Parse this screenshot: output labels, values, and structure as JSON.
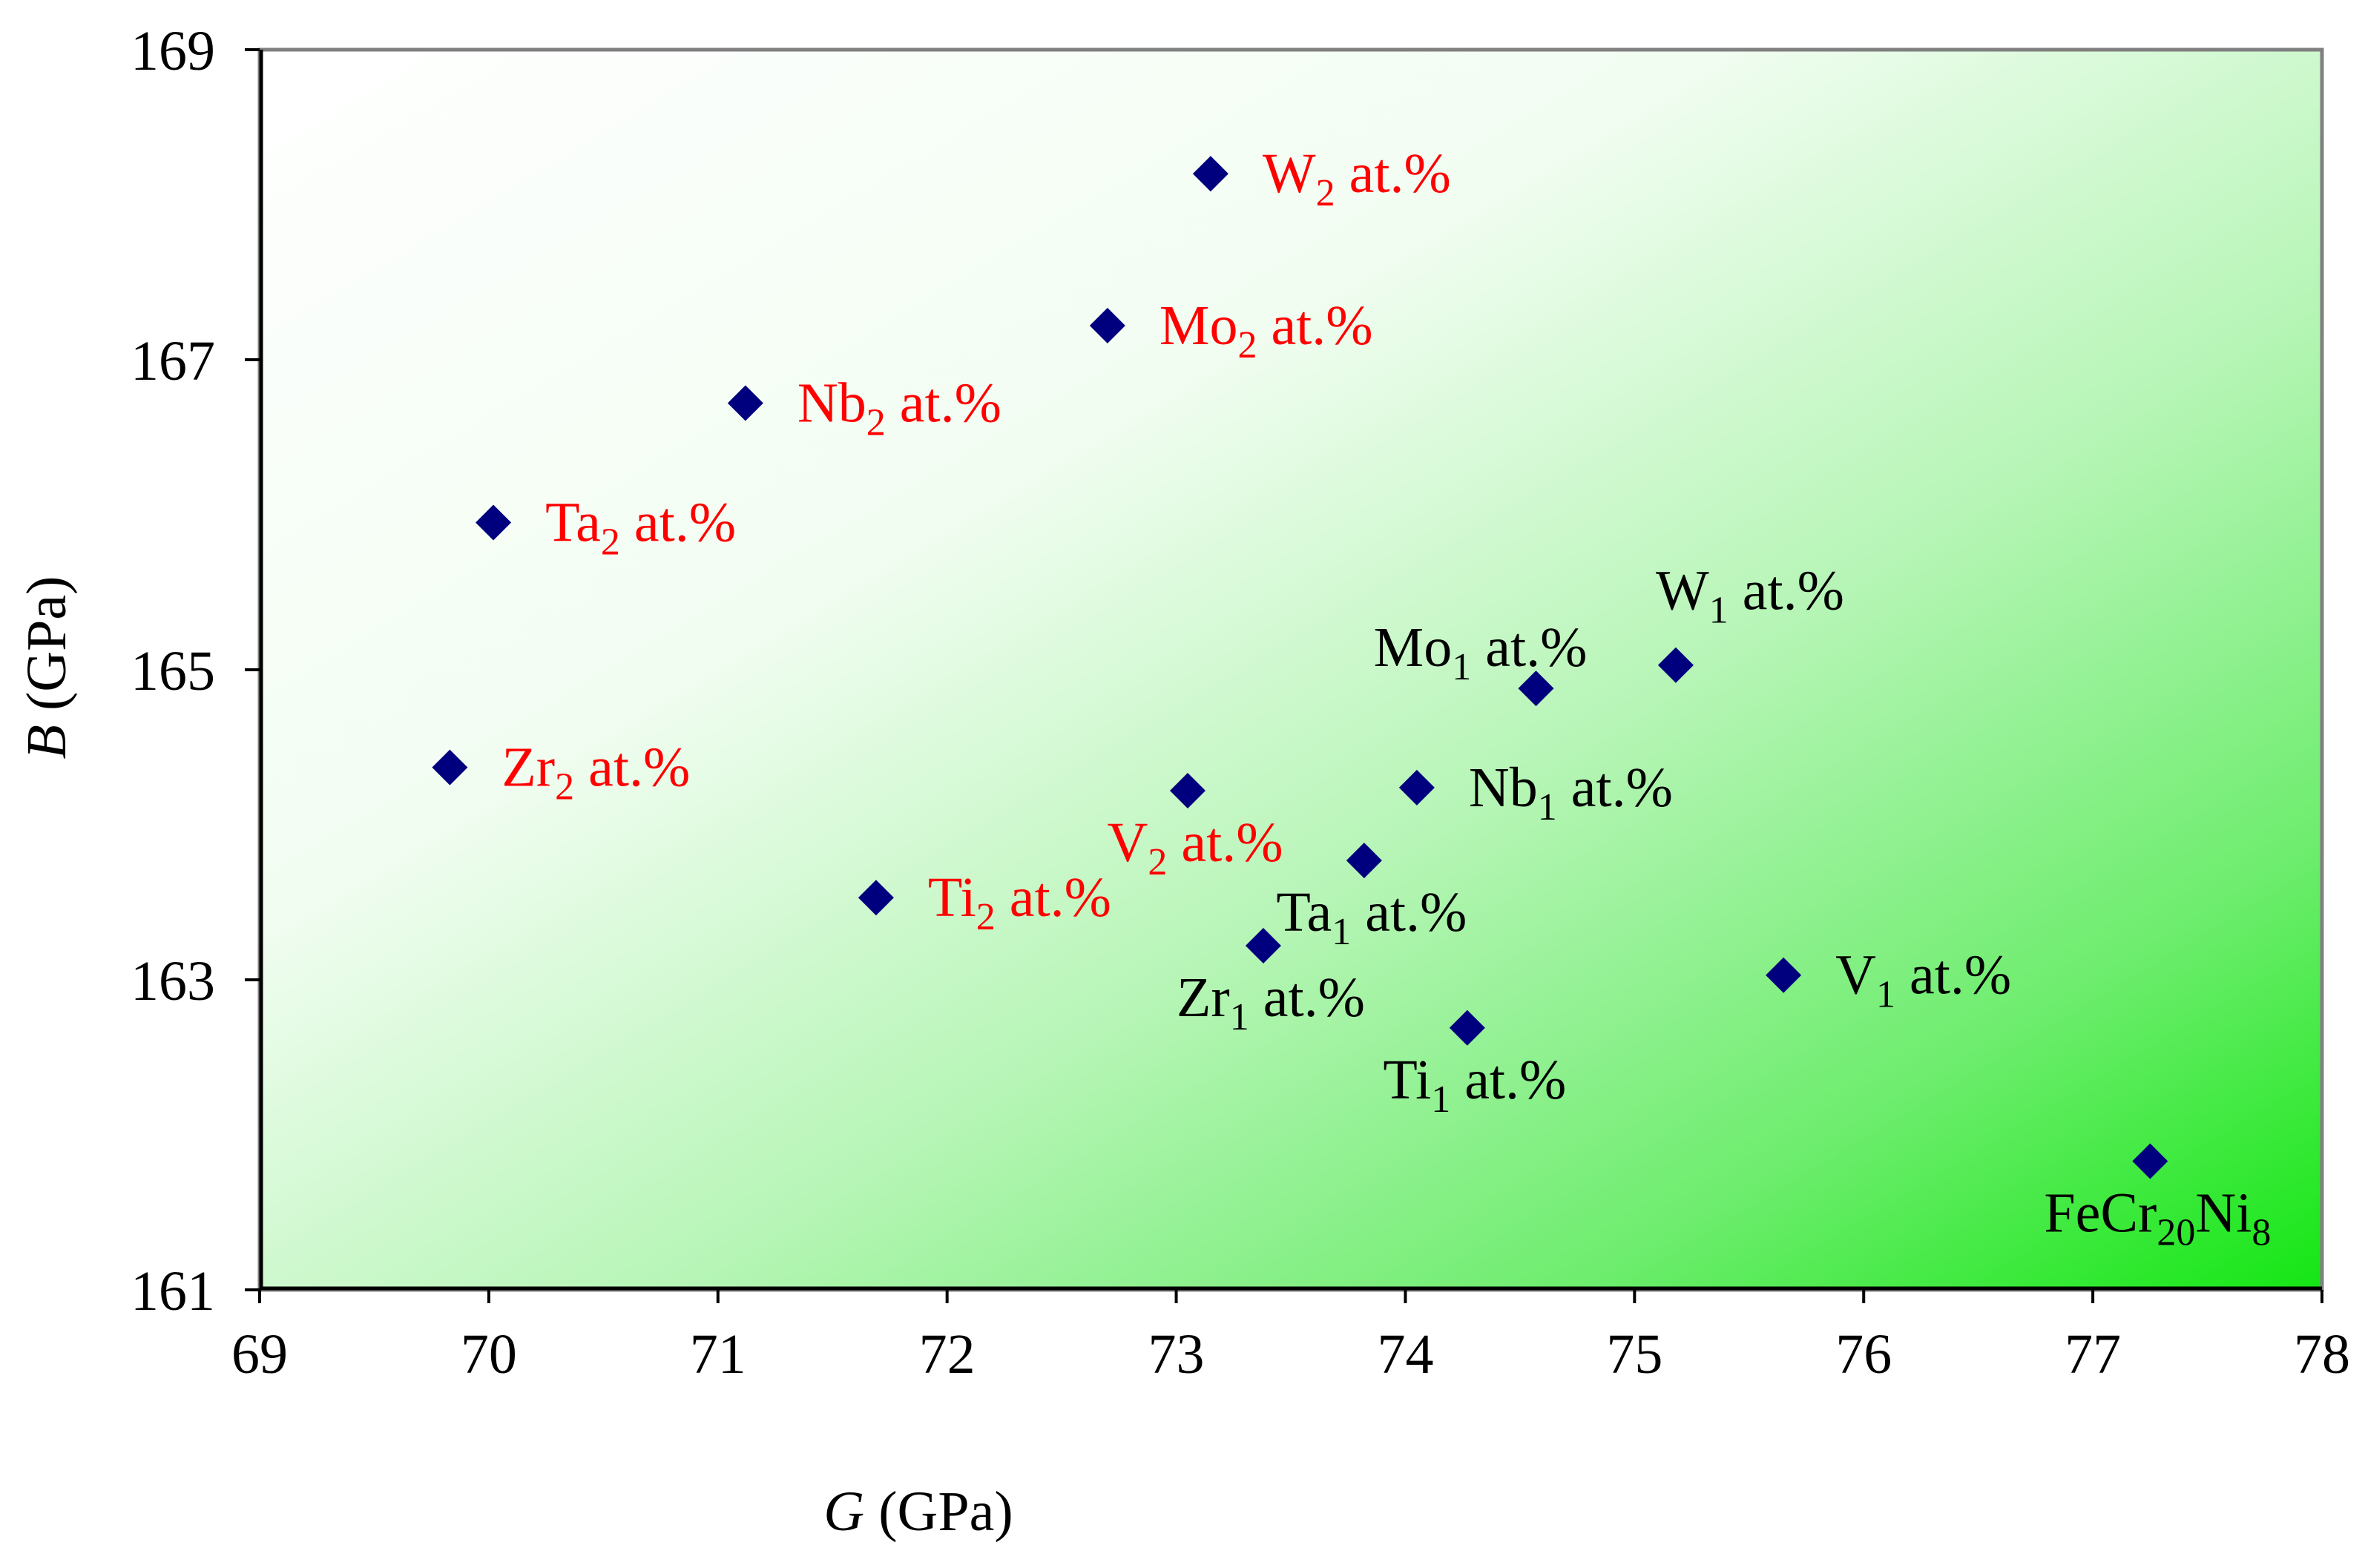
{
  "chart_data": {
    "type": "scatter",
    "title": "",
    "xlabel_symbol": "G",
    "xlabel_unit": " (GPa)",
    "ylabel_symbol": "B",
    "ylabel_unit": " (GPa)",
    "xlim": [
      69,
      78
    ],
    "ylim": [
      161,
      169
    ],
    "xticks": [
      69,
      70,
      71,
      72,
      73,
      74,
      75,
      76,
      77,
      78
    ],
    "yticks": [
      161,
      163,
      165,
      167,
      169
    ],
    "grid": false,
    "background": "gradient: white (top-left) to green (bottom-right)",
    "colors": {
      "marker": "#00007f",
      "label_2at": "#ff0000",
      "label_1at": "#000000",
      "label_base": "#000000",
      "frame": "#808080",
      "gradient_end": "#14e614"
    },
    "points": [
      {
        "x": 73.15,
        "y": 168.2,
        "group": "2at",
        "label": {
          "el": "W",
          "sub": "2",
          "rest": " at.%",
          "anchor": "right"
        }
      },
      {
        "x": 72.7,
        "y": 167.22,
        "group": "2at",
        "label": {
          "el": "Mo",
          "sub": "2",
          "rest": " at.%",
          "anchor": "right"
        }
      },
      {
        "x": 71.12,
        "y": 166.72,
        "group": "2at",
        "label": {
          "el": "Nb",
          "sub": "2",
          "rest": " at.%",
          "anchor": "right"
        }
      },
      {
        "x": 70.02,
        "y": 165.95,
        "group": "2at",
        "label": {
          "el": "Ta",
          "sub": "2",
          "rest": " at.%",
          "anchor": "right"
        }
      },
      {
        "x": 69.83,
        "y": 164.37,
        "group": "2at",
        "label": {
          "el": "Zr",
          "sub": "2",
          "rest": " at.%",
          "anchor": "right"
        }
      },
      {
        "x": 71.69,
        "y": 163.53,
        "group": "2at",
        "label": {
          "el": "Ti",
          "sub": "2",
          "rest": " at.%",
          "anchor": "right"
        }
      },
      {
        "x": 73.05,
        "y": 164.22,
        "group": "2at",
        "label": {
          "el": "V",
          "sub": "2",
          "rest": " at.%",
          "anchor": "below"
        }
      },
      {
        "x": 74.57,
        "y": 164.88,
        "group": "1at",
        "label": {
          "el": "Mo",
          "sub": "1",
          "rest": " at.%",
          "anchor": "above-left"
        }
      },
      {
        "x": 75.18,
        "y": 165.03,
        "group": "1at",
        "label": {
          "el": "W",
          "sub": "1",
          "rest": " at.%",
          "anchor": "above"
        }
      },
      {
        "x": 74.05,
        "y": 164.24,
        "group": "1at",
        "label": {
          "el": "Nb",
          "sub": "1",
          "rest": " at.%",
          "anchor": "right"
        }
      },
      {
        "x": 73.82,
        "y": 163.77,
        "group": "1at",
        "label": {
          "el": "Ta",
          "sub": "1",
          "rest": " at.%",
          "anchor": "below"
        }
      },
      {
        "x": 73.38,
        "y": 163.22,
        "group": "1at",
        "label": {
          "el": "Zr",
          "sub": "1",
          "rest": " at.%",
          "anchor": "below"
        }
      },
      {
        "x": 74.27,
        "y": 162.69,
        "group": "1at",
        "label": {
          "el": "Ti",
          "sub": "1",
          "rest": " at.%",
          "anchor": "below"
        }
      },
      {
        "x": 75.65,
        "y": 163.03,
        "group": "1at",
        "label": {
          "el": "V",
          "sub": "1",
          "rest": " at.%",
          "anchor": "right"
        }
      },
      {
        "x": 77.25,
        "y": 161.83,
        "group": "base",
        "label": {
          "el": "FeCr",
          "sub": "20",
          "rest": "Ni",
          "sub2": "8",
          "anchor": "below"
        }
      }
    ]
  }
}
